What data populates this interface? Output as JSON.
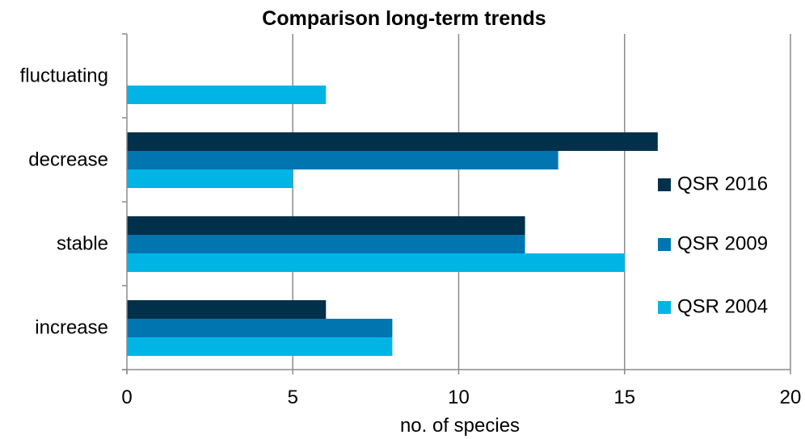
{
  "chart_data": {
    "type": "bar",
    "orientation": "horizontal",
    "title": "Comparison long-term trends",
    "xlabel": "no. of species",
    "ylabel": "",
    "xlim": [
      0,
      20
    ],
    "x_ticks": [
      0,
      5,
      10,
      15,
      20
    ],
    "grid": true,
    "legend_position": "right",
    "categories": [
      "fluctuating",
      "decrease",
      "stable",
      "increase"
    ],
    "series": [
      {
        "name": "QSR 2016",
        "color": "#00304a",
        "values": [
          0,
          16,
          12,
          6
        ]
      },
      {
        "name": "QSR 2009",
        "color": "#0075b0",
        "values": [
          0,
          13,
          12,
          8
        ]
      },
      {
        "name": "QSR 2004",
        "color": "#00b5e6",
        "values": [
          6,
          5,
          15,
          8
        ]
      }
    ]
  }
}
